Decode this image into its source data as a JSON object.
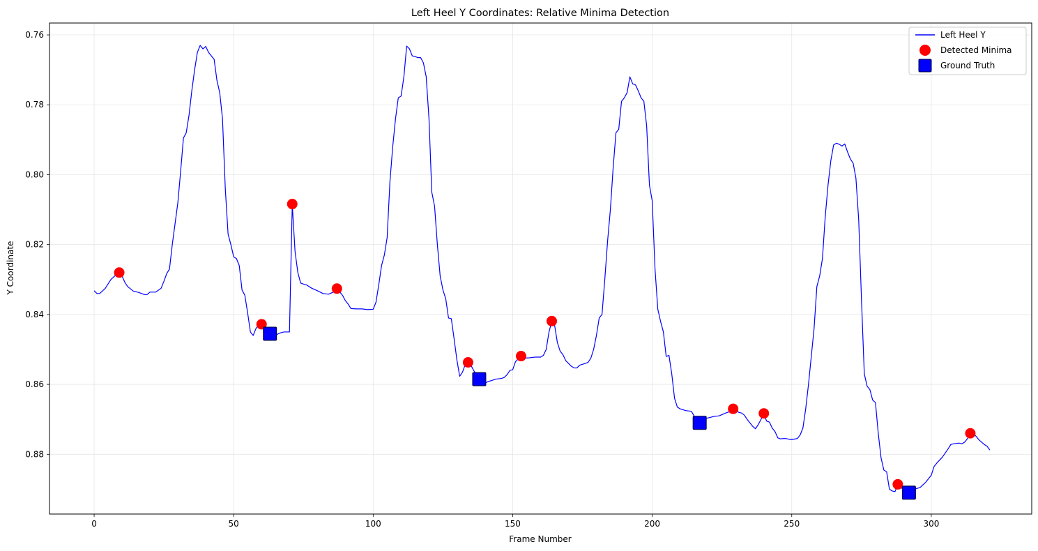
{
  "chart_data": {
    "type": "line",
    "title": "Left Heel Y Coordinates: Relative Minima Detection",
    "xlabel": "Frame Number",
    "ylabel": "Y Coordinate",
    "xlim": [
      -16,
      336
    ],
    "ylim": [
      0.8971,
      0.7566
    ],
    "y_inverted": true,
    "grid": true,
    "legend_position": "top-right",
    "x_ticks": [
      0,
      50,
      100,
      150,
      200,
      250,
      300
    ],
    "y_ticks": [
      0.76,
      0.78,
      0.8,
      0.82,
      0.84,
      0.86,
      0.88
    ],
    "y_tick_labels": [
      "0.76",
      "0.78",
      "0.80",
      "0.82",
      "0.84",
      "0.86",
      "0.88"
    ],
    "colors": {
      "line": "#0000ff",
      "minima": "#ff0000",
      "ground_truth": "#0000ff",
      "grid": "#e6e6e6"
    },
    "series": [
      {
        "name": "Left Heel Y",
        "style": "line",
        "points": [
          [
            0,
            0.8332
          ],
          [
            1,
            0.834
          ],
          [
            2,
            0.834
          ],
          [
            4,
            0.8325
          ],
          [
            6,
            0.83
          ],
          [
            8,
            0.8285
          ],
          [
            9,
            0.828
          ],
          [
            10,
            0.829
          ],
          [
            11,
            0.8308
          ],
          [
            12,
            0.832
          ],
          [
            14,
            0.8333
          ],
          [
            16,
            0.8337
          ],
          [
            18,
            0.8343
          ],
          [
            19,
            0.8343
          ],
          [
            20,
            0.8336
          ],
          [
            22,
            0.8336
          ],
          [
            24,
            0.8325
          ],
          [
            25,
            0.8305
          ],
          [
            26,
            0.8283
          ],
          [
            27,
            0.827
          ],
          [
            28,
            0.82
          ],
          [
            29,
            0.814
          ],
          [
            30,
            0.808
          ],
          [
            31,
            0.799
          ],
          [
            32,
            0.7895
          ],
          [
            33,
            0.788
          ],
          [
            34,
            0.783
          ],
          [
            35,
            0.776
          ],
          [
            36,
            0.77
          ],
          [
            37,
            0.765
          ],
          [
            38,
            0.763
          ],
          [
            39,
            0.764
          ],
          [
            40,
            0.7633
          ],
          [
            41,
            0.765
          ],
          [
            42,
            0.766
          ],
          [
            43,
            0.767
          ],
          [
            44,
            0.773
          ],
          [
            45,
            0.7765
          ],
          [
            46,
            0.784
          ],
          [
            47,
            0.804
          ],
          [
            48,
            0.817
          ],
          [
            49,
            0.82
          ],
          [
            50,
            0.8235
          ],
          [
            51,
            0.824
          ],
          [
            52,
            0.826
          ],
          [
            53,
            0.833
          ],
          [
            54,
            0.8345
          ],
          [
            55,
            0.8395
          ],
          [
            56,
            0.845
          ],
          [
            57,
            0.846
          ],
          [
            58,
            0.844
          ],
          [
            59,
            0.843
          ],
          [
            60,
            0.8425
          ],
          [
            61,
            0.843
          ],
          [
            62,
            0.845
          ],
          [
            63,
            0.846
          ],
          [
            64,
            0.8465
          ],
          [
            65,
            0.846
          ],
          [
            66,
            0.8455
          ],
          [
            67,
            0.8452
          ],
          [
            68,
            0.845
          ],
          [
            69,
            0.845
          ],
          [
            70,
            0.845
          ],
          [
            71,
            0.8085
          ],
          [
            72,
            0.822
          ],
          [
            73,
            0.828
          ],
          [
            74,
            0.831
          ],
          [
            75,
            0.8313
          ],
          [
            76,
            0.8315
          ],
          [
            78,
            0.8325
          ],
          [
            80,
            0.8332
          ],
          [
            82,
            0.834
          ],
          [
            84,
            0.8342
          ],
          [
            86,
            0.8335
          ],
          [
            87,
            0.8328
          ],
          [
            88,
            0.8335
          ],
          [
            89,
            0.8345
          ],
          [
            90,
            0.836
          ],
          [
            91,
            0.837
          ],
          [
            92,
            0.8383
          ],
          [
            94,
            0.8384
          ],
          [
            96,
            0.8384
          ],
          [
            98,
            0.8386
          ],
          [
            100,
            0.8385
          ],
          [
            101,
            0.8365
          ],
          [
            102,
            0.8315
          ],
          [
            103,
            0.826
          ],
          [
            104,
            0.823
          ],
          [
            105,
            0.818
          ],
          [
            106,
            0.802
          ],
          [
            107,
            0.792
          ],
          [
            108,
            0.784
          ],
          [
            109,
            0.778
          ],
          [
            110,
            0.7775
          ],
          [
            111,
            0.772
          ],
          [
            112,
            0.7632
          ],
          [
            113,
            0.764
          ],
          [
            114,
            0.766
          ],
          [
            115,
            0.7662
          ],
          [
            116,
            0.7665
          ],
          [
            117,
            0.7665
          ],
          [
            118,
            0.768
          ],
          [
            119,
            0.772
          ],
          [
            120,
            0.784
          ],
          [
            121,
            0.805
          ],
          [
            122,
            0.809
          ],
          [
            123,
            0.82
          ],
          [
            124,
            0.829
          ],
          [
            125,
            0.833
          ],
          [
            126,
            0.8355
          ],
          [
            127,
            0.841
          ],
          [
            128,
            0.8412
          ],
          [
            129,
            0.847
          ],
          [
            130,
            0.853
          ],
          [
            131,
            0.8577
          ],
          [
            132,
            0.8565
          ],
          [
            133,
            0.8543
          ],
          [
            134,
            0.8537
          ],
          [
            135,
            0.8545
          ],
          [
            136,
            0.856
          ],
          [
            138,
            0.8585
          ],
          [
            140,
            0.8596
          ],
          [
            142,
            0.859
          ],
          [
            144,
            0.8585
          ],
          [
            146,
            0.8583
          ],
          [
            147,
            0.858
          ],
          [
            148,
            0.8572
          ],
          [
            149,
            0.856
          ],
          [
            150,
            0.8558
          ],
          [
            151,
            0.8535
          ],
          [
            152,
            0.8527
          ],
          [
            153,
            0.8522
          ],
          [
            154,
            0.8525
          ],
          [
            156,
            0.8524
          ],
          [
            158,
            0.8522
          ],
          [
            160,
            0.8522
          ],
          [
            161,
            0.8517
          ],
          [
            162,
            0.85
          ],
          [
            163,
            0.845
          ],
          [
            164,
            0.842
          ],
          [
            165,
            0.843
          ],
          [
            166,
            0.848
          ],
          [
            167,
            0.8505
          ],
          [
            168,
            0.8515
          ],
          [
            169,
            0.8532
          ],
          [
            170,
            0.854
          ],
          [
            171,
            0.8548
          ],
          [
            172,
            0.8553
          ],
          [
            173,
            0.8553
          ],
          [
            174,
            0.8545
          ],
          [
            176,
            0.854
          ],
          [
            177,
            0.8537
          ],
          [
            178,
            0.8525
          ],
          [
            179,
            0.85
          ],
          [
            180,
            0.846
          ],
          [
            181,
            0.841
          ],
          [
            182,
            0.84
          ],
          [
            183,
            0.83
          ],
          [
            184,
            0.819
          ],
          [
            185,
            0.81
          ],
          [
            186,
            0.798
          ],
          [
            187,
            0.788
          ],
          [
            188,
            0.787
          ],
          [
            189,
            0.779
          ],
          [
            190,
            0.778
          ],
          [
            191,
            0.7765
          ],
          [
            192,
            0.772
          ],
          [
            193,
            0.774
          ],
          [
            194,
            0.7743
          ],
          [
            195,
            0.776
          ],
          [
            196,
            0.778
          ],
          [
            197,
            0.779
          ],
          [
            198,
            0.786
          ],
          [
            199,
            0.803
          ],
          [
            200,
            0.8075
          ],
          [
            201,
            0.827
          ],
          [
            202,
            0.8385
          ],
          [
            203,
            0.842
          ],
          [
            204,
            0.845
          ],
          [
            205,
            0.852
          ],
          [
            206,
            0.8517
          ],
          [
            207,
            0.857
          ],
          [
            208,
            0.864
          ],
          [
            209,
            0.8665
          ],
          [
            210,
            0.867
          ],
          [
            212,
            0.8675
          ],
          [
            214,
            0.8677
          ],
          [
            215,
            0.869
          ],
          [
            216,
            0.8702
          ],
          [
            217,
            0.8708
          ],
          [
            218,
            0.8705
          ],
          [
            219,
            0.8698
          ],
          [
            220,
            0.8696
          ],
          [
            222,
            0.8692
          ],
          [
            224,
            0.869
          ],
          [
            226,
            0.8683
          ],
          [
            227,
            0.868
          ],
          [
            228,
            0.8678
          ],
          [
            229,
            0.867
          ],
          [
            230,
            0.8675
          ],
          [
            231,
            0.868
          ],
          [
            232,
            0.8682
          ],
          [
            233,
            0.8688
          ],
          [
            234,
            0.87
          ],
          [
            235,
            0.871
          ],
          [
            236,
            0.872
          ],
          [
            237,
            0.8727
          ],
          [
            238,
            0.8715
          ],
          [
            239,
            0.87
          ],
          [
            240,
            0.8685
          ],
          [
            241,
            0.8705
          ],
          [
            242,
            0.8708
          ],
          [
            243,
            0.8725
          ],
          [
            244,
            0.8735
          ],
          [
            245,
            0.8753
          ],
          [
            246,
            0.8756
          ],
          [
            247,
            0.8755
          ],
          [
            248,
            0.8755
          ],
          [
            249,
            0.8757
          ],
          [
            250,
            0.8758
          ],
          [
            252,
            0.8755
          ],
          [
            253,
            0.8745
          ],
          [
            254,
            0.8725
          ],
          [
            255,
            0.867
          ],
          [
            256,
            0.86
          ],
          [
            257,
            0.852
          ],
          [
            258,
            0.844
          ],
          [
            259,
            0.832
          ],
          [
            260,
            0.829
          ],
          [
            261,
            0.824
          ],
          [
            262,
            0.812
          ],
          [
            263,
            0.803
          ],
          [
            264,
            0.796
          ],
          [
            265,
            0.7915
          ],
          [
            266,
            0.791
          ],
          [
            267,
            0.7913
          ],
          [
            268,
            0.7918
          ],
          [
            269,
            0.7912
          ],
          [
            270,
            0.7935
          ],
          [
            271,
            0.7955
          ],
          [
            272,
            0.7967
          ],
          [
            273,
            0.801
          ],
          [
            274,
            0.813
          ],
          [
            275,
            0.836
          ],
          [
            276,
            0.857
          ],
          [
            277,
            0.8605
          ],
          [
            278,
            0.8615
          ],
          [
            279,
            0.8645
          ],
          [
            280,
            0.8652
          ],
          [
            281,
            0.874
          ],
          [
            282,
            0.881
          ],
          [
            283,
            0.8845
          ],
          [
            284,
            0.885
          ],
          [
            285,
            0.89
          ],
          [
            286,
            0.8905
          ],
          [
            287,
            0.8907
          ],
          [
            288,
            0.8886
          ],
          [
            289,
            0.8895
          ],
          [
            290,
            0.89
          ],
          [
            292,
            0.8902
          ],
          [
            294,
            0.89
          ],
          [
            296,
            0.8895
          ],
          [
            298,
            0.888
          ],
          [
            300,
            0.886
          ],
          [
            301,
            0.8835
          ],
          [
            302,
            0.8825
          ],
          [
            304,
            0.8808
          ],
          [
            306,
            0.8785
          ],
          [
            307,
            0.8772
          ],
          [
            308,
            0.877
          ],
          [
            310,
            0.8768
          ],
          [
            311,
            0.877
          ],
          [
            312,
            0.8765
          ],
          [
            313,
            0.8755
          ],
          [
            314,
            0.8742
          ],
          [
            315,
            0.874
          ],
          [
            316,
            0.8748
          ],
          [
            317,
            0.8758
          ],
          [
            318,
            0.8765
          ],
          [
            319,
            0.8772
          ],
          [
            320,
            0.8777
          ],
          [
            321,
            0.8788
          ]
        ]
      },
      {
        "name": "Detected Minima",
        "style": "scatter-circle",
        "points": [
          [
            9,
            0.828
          ],
          [
            60,
            0.8428
          ],
          [
            71,
            0.8084
          ],
          [
            87,
            0.8326
          ],
          [
            134,
            0.8537
          ],
          [
            153,
            0.8519
          ],
          [
            164,
            0.8419
          ],
          [
            229,
            0.867
          ],
          [
            240,
            0.8683
          ],
          [
            288,
            0.8886
          ],
          [
            314,
            0.874
          ]
        ]
      },
      {
        "name": "Ground Truth",
        "style": "scatter-square",
        "points": [
          [
            63,
            0.8455
          ],
          [
            138,
            0.8585
          ],
          [
            217,
            0.871
          ],
          [
            292,
            0.891
          ]
        ]
      }
    ]
  }
}
